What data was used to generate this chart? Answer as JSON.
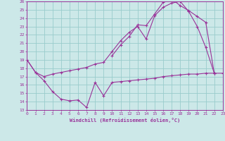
{
  "bg_color": "#cce8e8",
  "grid_color": "#99cccc",
  "line_color": "#993399",
  "xmin": 0,
  "xmax": 23,
  "ymin": 13,
  "ymax": 26,
  "series1_x": [
    0,
    1,
    2,
    3,
    4,
    5,
    6,
    7,
    8,
    9,
    10,
    11,
    12,
    13,
    14,
    15,
    16,
    17,
    18,
    19,
    20,
    21,
    22,
    23
  ],
  "series1_y": [
    19,
    17.5,
    16.5,
    15.2,
    14.3,
    14.1,
    14.2,
    13.3,
    16.3,
    14.7,
    16.3,
    16.4,
    16.5,
    16.6,
    16.7,
    16.8,
    17.0,
    17.1,
    17.2,
    17.3,
    17.3,
    17.4,
    17.4,
    17.4
  ],
  "series2_x": [
    0,
    1,
    2,
    3,
    4,
    5,
    6,
    7,
    8,
    9,
    10,
    11,
    12,
    13,
    14,
    15,
    16,
    17,
    18,
    19,
    20,
    21,
    22
  ],
  "series2_y": [
    19,
    17.5,
    17.0,
    17.3,
    17.5,
    17.7,
    17.9,
    18.1,
    18.5,
    18.7,
    20.0,
    21.3,
    22.3,
    23.0,
    21.5,
    24.3,
    25.3,
    25.8,
    26.0,
    24.8,
    23.0,
    20.5,
    17.4
  ],
  "series3_x": [
    10,
    11,
    12,
    13,
    14,
    15,
    16,
    17,
    18,
    19,
    20,
    21,
    22
  ],
  "series3_y": [
    19.5,
    20.8,
    21.8,
    23.2,
    23.1,
    24.5,
    25.9,
    26.3,
    25.5,
    24.9,
    24.2,
    23.5,
    17.4
  ],
  "xlabel": "Windchill (Refroidissement éolien,°C)"
}
